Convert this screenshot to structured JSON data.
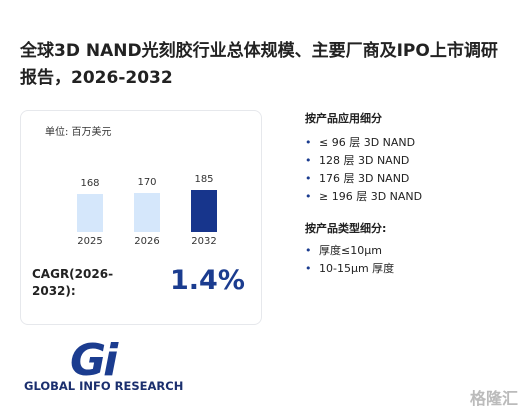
{
  "title": "全球3D NAND光刻胶行业总体规模、主要厂商及IPO上市调研报告，2026-2032",
  "chart_data": {
    "type": "bar",
    "unit": "单位: 百万美元",
    "categories": [
      "2025",
      "2026",
      "2032"
    ],
    "values": [
      168,
      170,
      185
    ],
    "colors": [
      "#d5e7fb",
      "#d5e7fb",
      "#17358c"
    ]
  },
  "cagr": {
    "label": "CAGR(2026-2032):",
    "value": "1.4%"
  },
  "sections": [
    {
      "heading": "按产品应用细分",
      "items": [
        "≤ 96 层 3D NAND",
        "128 层 3D NAND",
        "176 层 3D NAND",
        "≥ 196 层 3D NAND"
      ]
    },
    {
      "heading": "按产品类型细分:",
      "items": [
        "厚度≤10μm",
        "10-15μm 厚度"
      ]
    }
  ],
  "logo": {
    "mark": "Gi",
    "text": "GLOBAL INFO RESEARCH"
  },
  "watermark": "格隆汇"
}
